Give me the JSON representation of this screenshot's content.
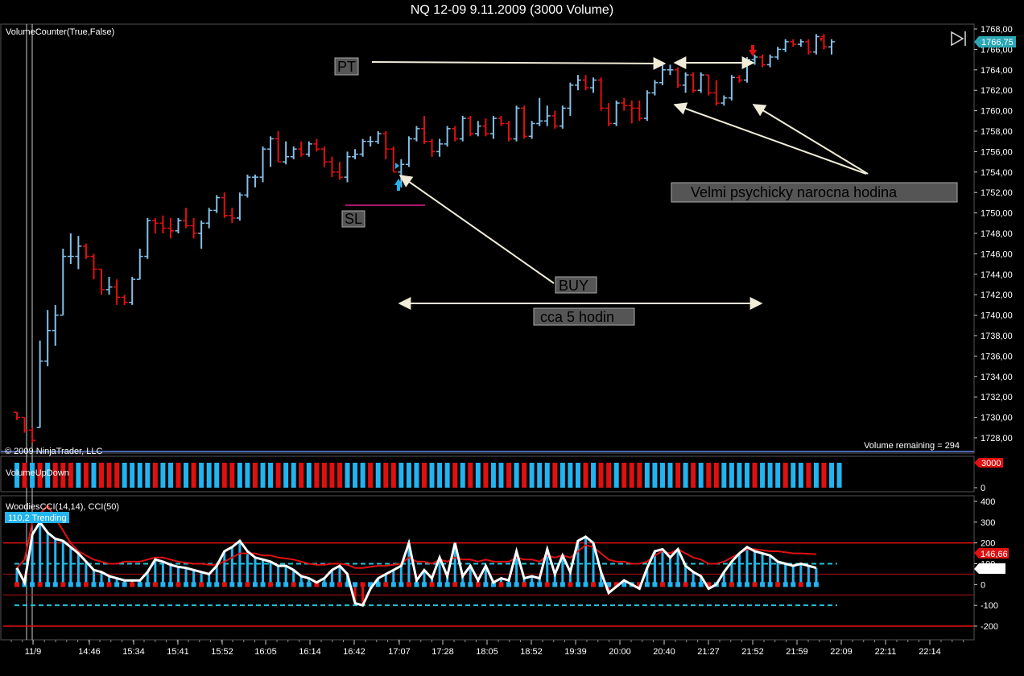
{
  "window": {
    "title": "NQ 12-09  9.11.2009 (3000 Volume)"
  },
  "panels": {
    "price": {
      "indicator_label": "VolumeCounter(True,False)",
      "copyright": "© 2009 NinjaTrader, LLC",
      "volume_remaining": "Volume remaining = 294",
      "last_price": "1766,75"
    },
    "volume": {
      "indicator_label": "VolumeUpDown",
      "last_value": "3000",
      "axis_zero": "0"
    },
    "cci": {
      "indicator_label": "WoodiesCCI(14,14), CCI(50)",
      "status_badge": "110,2 Trending",
      "cci_fast_value": "70,57",
      "cci_slow_value": "146,66"
    }
  },
  "annotations": {
    "pt": "PT",
    "sl": "SL",
    "buy": "BUY",
    "duration": "cca 5 hodin",
    "comment": "Velmi psychicky narocna hodina"
  },
  "colors": {
    "up": "#86bfe8",
    "down": "#e01010",
    "vol_up": "#22b4f0",
    "vol_down": "#e01010",
    "cci_zero": "#22b4f0",
    "sl_line": "#e0208a"
  },
  "chart_data": [
    {
      "type": "ohlc",
      "title": "NQ 12-09  9.11.2009 (3000 Volume)",
      "ylim": [
        1727,
        1768
      ],
      "y_ticks": [
        "1768,00",
        "1766,00",
        "1764,00",
        "1762,00",
        "1760,00",
        "1758,00",
        "1756,00",
        "1754,00",
        "1752,00",
        "1750,00",
        "1748,00",
        "1746,00",
        "1744,00",
        "1742,00",
        "1740,00",
        "1738,00",
        "1736,00",
        "1734,00",
        "1732,00",
        "1730,00",
        "1728,00"
      ],
      "x_ticks": [
        "11/9",
        "14:46",
        "15:34",
        "15:41",
        "15:52",
        "16:05",
        "16:14",
        "16:42",
        "17:07",
        "17:28",
        "18:05",
        "18:52",
        "19:39",
        "20:00",
        "20:40",
        "21:27",
        "21:52",
        "21:59",
        "22:09",
        "22:11",
        "22:14"
      ],
      "bars": [
        [
          1730.5,
          1730.5,
          1729.75,
          1730
        ],
        [
          1730,
          1730,
          1728.5,
          1728.75
        ],
        [
          1728.75,
          1729,
          1727.5,
          1727.75
        ],
        [
          1729,
          1737.5,
          1729,
          1735.5
        ],
        [
          1735.5,
          1740.5,
          1735,
          1738.5
        ],
        [
          1738.5,
          1741,
          1737,
          1740
        ],
        [
          1740,
          1746.5,
          1740,
          1745.75
        ],
        [
          1745.75,
          1748,
          1745,
          1745.75
        ],
        [
          1745.75,
          1747.75,
          1744.5,
          1746.75
        ],
        [
          1746.75,
          1747,
          1745.5,
          1745.75
        ],
        [
          1745.75,
          1746,
          1743.5,
          1744.5
        ],
        [
          1744.5,
          1744.5,
          1742,
          1742.5
        ],
        [
          1742.5,
          1743.75,
          1742,
          1742.75
        ],
        [
          1742.75,
          1743.5,
          1741,
          1741.75
        ],
        [
          1741.75,
          1742,
          1741,
          1741.25
        ],
        [
          1741.25,
          1743.75,
          1741,
          1743.5
        ],
        [
          1743.5,
          1746.5,
          1743.5,
          1745.75
        ],
        [
          1745.75,
          1749.5,
          1745.5,
          1749.25
        ],
        [
          1749.25,
          1749.5,
          1748,
          1749
        ],
        [
          1749,
          1749.75,
          1748,
          1748.5
        ],
        [
          1748.5,
          1749.5,
          1747.5,
          1748.25
        ],
        [
          1748.25,
          1749.5,
          1748,
          1749.25
        ],
        [
          1749.25,
          1750.5,
          1748.5,
          1748.75
        ],
        [
          1748.75,
          1749.5,
          1747.5,
          1748
        ],
        [
          1748,
          1749.25,
          1746.5,
          1749
        ],
        [
          1749,
          1750.5,
          1748.5,
          1750.25
        ],
        [
          1750.25,
          1751.75,
          1750,
          1751.5
        ],
        [
          1751.5,
          1752,
          1749.5,
          1749.75
        ],
        [
          1749.75,
          1750.5,
          1749,
          1749.5
        ],
        [
          1749.5,
          1752,
          1749.25,
          1751.75
        ],
        [
          1751.75,
          1753.75,
          1751.5,
          1753.5
        ],
        [
          1753.5,
          1753.75,
          1752.5,
          1753.5
        ],
        [
          1753.5,
          1756.5,
          1753,
          1756.25
        ],
        [
          1756.25,
          1757.5,
          1754.5,
          1757.25
        ],
        [
          1757.25,
          1758,
          1755,
          1755
        ],
        [
          1755,
          1757,
          1754.75,
          1755.5
        ],
        [
          1755.5,
          1756.5,
          1755.25,
          1756.25
        ],
        [
          1756.25,
          1757,
          1755.5,
          1755.75
        ],
        [
          1755.75,
          1757,
          1755.5,
          1756.75
        ],
        [
          1756.75,
          1757.25,
          1756,
          1756.25
        ],
        [
          1756.25,
          1756.5,
          1754.5,
          1755
        ],
        [
          1755,
          1755.5,
          1753.5,
          1754
        ],
        [
          1754,
          1755,
          1753.25,
          1753.5
        ],
        [
          1753.5,
          1756,
          1753,
          1755.5
        ],
        [
          1755.5,
          1756.25,
          1755.25,
          1755.75
        ],
        [
          1755.75,
          1757.25,
          1755.5,
          1757
        ],
        [
          1757,
          1757.5,
          1756.5,
          1757
        ],
        [
          1757,
          1758,
          1756.75,
          1757.75
        ],
        [
          1757.75,
          1758,
          1755.25,
          1756.25
        ],
        [
          1756.25,
          1756.5,
          1754,
          1754
        ],
        [
          1754,
          1755.25,
          1752.5,
          1754.75
        ],
        [
          1754.75,
          1757.5,
          1754.5,
          1757.25
        ],
        [
          1757.25,
          1758.5,
          1757,
          1758.25
        ],
        [
          1758.25,
          1759.5,
          1756.75,
          1757
        ],
        [
          1757,
          1757.25,
          1755.5,
          1756
        ],
        [
          1756,
          1757.25,
          1755.5,
          1756.75
        ],
        [
          1756.75,
          1758.5,
          1756.5,
          1758.25
        ],
        [
          1758.25,
          1758.5,
          1757,
          1757.25
        ],
        [
          1757.25,
          1759.5,
          1757,
          1759.25
        ],
        [
          1759.25,
          1759.5,
          1757.5,
          1757.75
        ],
        [
          1757.75,
          1759,
          1757.5,
          1758.5
        ],
        [
          1758.5,
          1759.25,
          1757.5,
          1757.75
        ],
        [
          1757.75,
          1759.5,
          1757.25,
          1759.25
        ],
        [
          1759.25,
          1759.5,
          1758.5,
          1758.75
        ],
        [
          1758.75,
          1759,
          1757,
          1757.25
        ],
        [
          1757.25,
          1760.5,
          1757,
          1760.25
        ],
        [
          1760.25,
          1760.5,
          1757.25,
          1757.5
        ],
        [
          1757.5,
          1759,
          1757.25,
          1758.75
        ],
        [
          1758.75,
          1761.25,
          1758.5,
          1759
        ],
        [
          1759,
          1760.5,
          1758.5,
          1759.5
        ],
        [
          1759.5,
          1760,
          1758.25,
          1758.5
        ],
        [
          1758.5,
          1760.5,
          1758.25,
          1760.25
        ],
        [
          1760.25,
          1762.75,
          1759.5,
          1762.5
        ],
        [
          1762.5,
          1763.5,
          1762,
          1763
        ],
        [
          1763,
          1763.5,
          1762,
          1762.25
        ],
        [
          1762.25,
          1763.25,
          1761.75,
          1763
        ],
        [
          1763,
          1763.25,
          1760,
          1760.25
        ],
        [
          1760.25,
          1760.75,
          1758.5,
          1758.75
        ],
        [
          1758.75,
          1761,
          1758.5,
          1760.75
        ],
        [
          1760.75,
          1761.25,
          1760,
          1760.5
        ],
        [
          1760.5,
          1761,
          1758.75,
          1760.25
        ],
        [
          1760.25,
          1761,
          1759,
          1759.25
        ],
        [
          1759.25,
          1762,
          1759,
          1761.75
        ],
        [
          1761.75,
          1763,
          1761.5,
          1762.75
        ],
        [
          1762.75,
          1764.5,
          1762.5,
          1764
        ],
        [
          1764,
          1764.5,
          1763.5,
          1764
        ],
        [
          1764,
          1764.25,
          1762.25,
          1762.5
        ],
        [
          1762.5,
          1763.75,
          1761.75,
          1763.5
        ],
        [
          1763.5,
          1763.75,
          1761.75,
          1762
        ],
        [
          1762,
          1763.75,
          1761.75,
          1763.5
        ],
        [
          1763.5,
          1763.5,
          1761.5,
          1761.75
        ],
        [
          1761.75,
          1763,
          1760.5,
          1760.75
        ],
        [
          1760.75,
          1761.5,
          1760.5,
          1761.25
        ],
        [
          1761.25,
          1763.5,
          1761,
          1763.25
        ],
        [
          1763.25,
          1763.5,
          1762.75,
          1763
        ],
        [
          1763,
          1765.25,
          1762.75,
          1765
        ],
        [
          1765,
          1765.5,
          1764.5,
          1765.25
        ],
        [
          1765.25,
          1765.5,
          1764.25,
          1764.5
        ],
        [
          1764.5,
          1765.5,
          1764.25,
          1765.25
        ],
        [
          1765.25,
          1766.25,
          1765,
          1766
        ],
        [
          1766,
          1767,
          1765.75,
          1766.75
        ],
        [
          1766.75,
          1767,
          1766.25,
          1766.5
        ],
        [
          1766.5,
          1767,
          1766.25,
          1766.75
        ],
        [
          1766.75,
          1767,
          1765.5,
          1765.75
        ],
        [
          1765.75,
          1767.5,
          1765.5,
          1767.25
        ],
        [
          1767.25,
          1767.5,
          1766,
          1766.25
        ],
        [
          1766.25,
          1767,
          1765.5,
          1766.75
        ]
      ]
    },
    {
      "type": "bar",
      "ylim": [
        0,
        3000
      ],
      "y_ticks": [
        "0"
      ],
      "directions": [
        "up",
        "down",
        "up",
        "down",
        "up",
        "down",
        "down",
        "down",
        "up",
        "down",
        "up",
        "down",
        "down",
        "down",
        "up",
        "up",
        "up",
        "up",
        "down",
        "up",
        "up",
        "down",
        "up",
        "down",
        "up",
        "up",
        "up",
        "down",
        "down",
        "up",
        "up",
        "down",
        "up",
        "up",
        "down",
        "up",
        "up",
        "down",
        "up",
        "down",
        "down",
        "down",
        "down",
        "up",
        "up",
        "up",
        "down",
        "up",
        "down",
        "down",
        "up",
        "up",
        "up",
        "down",
        "up",
        "up",
        "up",
        "down",
        "up",
        "down",
        "up",
        "down",
        "up",
        "up",
        "down",
        "up",
        "down",
        "up",
        "up",
        "up",
        "down",
        "up",
        "up",
        "up",
        "down",
        "up",
        "down",
        "down",
        "up",
        "down",
        "down",
        "down",
        "up",
        "up",
        "up",
        "up",
        "down",
        "up",
        "down",
        "up",
        "down",
        "down",
        "up",
        "up",
        "up",
        "up",
        "down",
        "up",
        "up",
        "up",
        "down",
        "up",
        "up",
        "down",
        "up",
        "down",
        "up",
        "up"
      ]
    },
    {
      "type": "line",
      "ylim": [
        -250,
        420
      ],
      "y_ticks": [
        "400",
        "300",
        "200",
        "100",
        "0",
        "-100",
        "-200"
      ],
      "levels": [
        200,
        100,
        -100,
        -200
      ],
      "series": [
        {
          "values": [
            80,
            10,
            240,
            300,
            250,
            220,
            210,
            180,
            150,
            110,
            70,
            60,
            40,
            30,
            20,
            20,
            20,
            60,
            120,
            110,
            95,
            85,
            80,
            70,
            60,
            50,
            90,
            160,
            180,
            210,
            160,
            130,
            120,
            110,
            90,
            90,
            70,
            40,
            30,
            10,
            30,
            70,
            90,
            50,
            -90,
            -100,
            -20,
            30,
            50,
            70,
            90,
            200,
            20,
            70,
            30,
            130,
            40,
            200,
            40,
            90,
            20,
            90,
            10,
            30,
            20,
            160,
            30,
            40,
            30,
            170,
            50,
            140,
            60,
            210,
            230,
            200,
            60,
            -40,
            -10,
            20,
            0,
            -20,
            80,
            160,
            170,
            130,
            170,
            90,
            60,
            40,
            -20,
            0,
            60,
            110,
            150,
            180,
            160,
            150,
            140,
            110,
            100,
            90,
            100,
            90,
            80
          ]
        },
        {
          "values": [
            80,
            120,
            300,
            340,
            380,
            320,
            260,
            200,
            160,
            140,
            120,
            110,
            100,
            100,
            110,
            110,
            110,
            120,
            130,
            130,
            120,
            110,
            105,
            100,
            100,
            95,
            95,
            110,
            130,
            150,
            150,
            150,
            140,
            140,
            130,
            125,
            120,
            110,
            100,
            95,
            95,
            100,
            100,
            95,
            80,
            80,
            85,
            90,
            90,
            95,
            100,
            130,
            110,
            110,
            100,
            120,
            110,
            130,
            120,
            120,
            110,
            120,
            110,
            110,
            110,
            130,
            120,
            120,
            110,
            140,
            130,
            140,
            130,
            160,
            190,
            180,
            150,
            120,
            110,
            110,
            100,
            100,
            110,
            140,
            160,
            150,
            170,
            150,
            130,
            120,
            100,
            100,
            110,
            130,
            150,
            170,
            170,
            165,
            160,
            160,
            155,
            150,
            150,
            148,
            146
          ]
        }
      ]
    }
  ]
}
